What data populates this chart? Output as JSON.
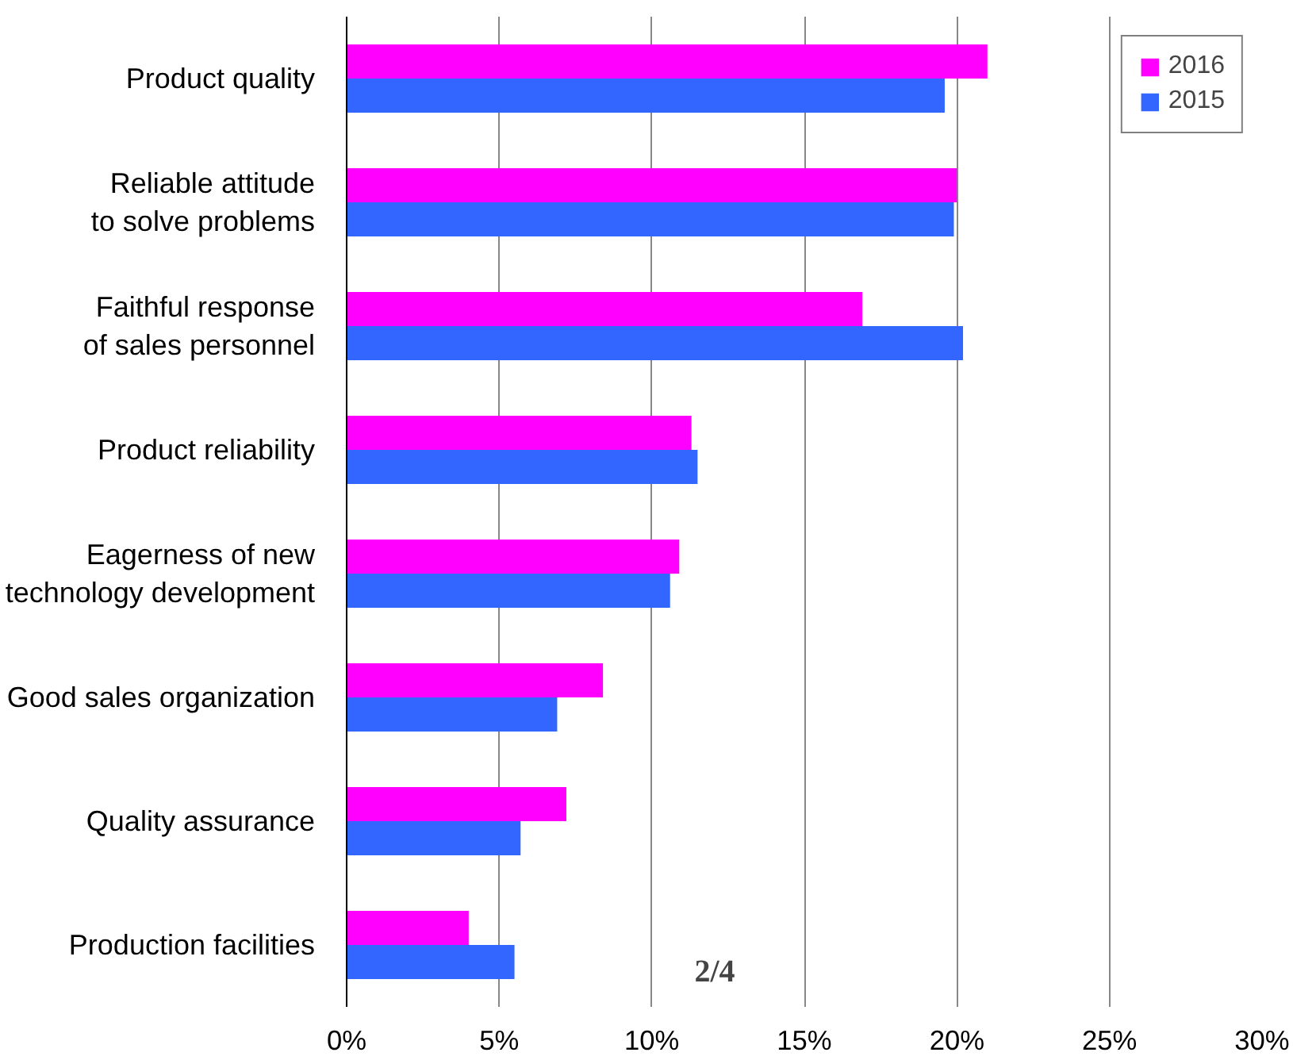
{
  "chart_data": {
    "type": "bar",
    "orientation": "horizontal",
    "categories": [
      "Product quality",
      "Reliable attitude\nto solve problems",
      "Faithful response\nof sales personnel",
      "Product reliability",
      "Eagerness of new\ntechnology development",
      "Good sales organization",
      "Quality assurance",
      "Production facilities"
    ],
    "series": [
      {
        "name": "2016",
        "color": "#ff00ff",
        "values": [
          21.0,
          20.0,
          16.9,
          11.3,
          10.9,
          8.4,
          7.2,
          4.0
        ]
      },
      {
        "name": "2015",
        "color": "#3366ff",
        "values": [
          19.6,
          19.9,
          20.2,
          11.5,
          10.6,
          6.9,
          5.7,
          5.5
        ]
      }
    ],
    "xlim": [
      0,
      30
    ],
    "xticks": [
      {
        "value": 0,
        "label": "0%"
      },
      {
        "value": 5,
        "label": "5%"
      },
      {
        "value": 10,
        "label": "10%"
      },
      {
        "value": 15,
        "label": "15%"
      },
      {
        "value": 20,
        "label": "20%"
      },
      {
        "value": 25,
        "label": "25%"
      },
      {
        "value": 30,
        "label": "30%"
      }
    ],
    "grid": "x",
    "legend": "top right",
    "annotations": [
      "2/4"
    ]
  }
}
